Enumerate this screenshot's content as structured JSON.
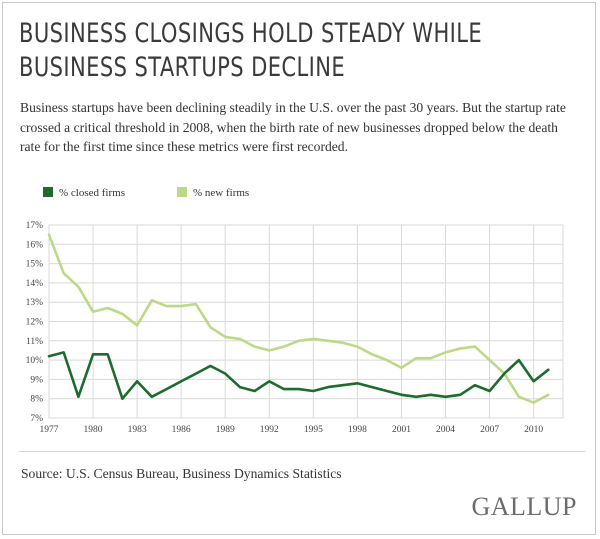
{
  "title_lines": [
    "BUSINESS CLOSINGS HOLD STEADY WHILE",
    "BUSINESS STARTUPS DECLINE"
  ],
  "subtitle": "Business startups have been declining steadily in the U.S. over the past 30 years. But the startup rate crossed a critical threshold in 2008, when the birth rate of new businesses dropped below the death rate for the first time since these metrics were first recorded.",
  "source": "Source: U.S. Census Bureau, Business Dynamics Statistics",
  "logo": "GALLUP",
  "colors": {
    "closed": "#1e6b2e",
    "new": "#bcd986",
    "grid": "#d9d9d9"
  },
  "chart_data": {
    "type": "line",
    "title": "",
    "xlabel": "",
    "ylabel": "",
    "x": [
      1977,
      1978,
      1979,
      1980,
      1981,
      1982,
      1983,
      1984,
      1985,
      1986,
      1987,
      1988,
      1989,
      1990,
      1991,
      1992,
      1993,
      1994,
      1995,
      1996,
      1997,
      1998,
      1999,
      2000,
      2001,
      2002,
      2003,
      2004,
      2005,
      2006,
      2007,
      2008,
      2009,
      2010,
      2011
    ],
    "xticks": [
      1977,
      1980,
      1983,
      1986,
      1989,
      1992,
      1995,
      1998,
      2001,
      2004,
      2007,
      2010
    ],
    "xtick_labels": [
      "1977",
      "1980",
      "1983",
      "1986",
      "1989",
      "1992",
      "1995",
      "1998",
      "2001",
      "2004",
      "2007",
      "2010"
    ],
    "xlim": [
      1977,
      2012
    ],
    "ylim": [
      7,
      17
    ],
    "yticks": [
      7,
      8,
      9,
      10,
      11,
      12,
      13,
      14,
      15,
      16,
      17
    ],
    "ytick_labels": [
      "7%",
      "8%",
      "9%",
      "10%",
      "11%",
      "12%",
      "13%",
      "14%",
      "15%",
      "16%",
      "17%"
    ],
    "grid": true,
    "legend": "top-left",
    "series": [
      {
        "name": "% closed firms",
        "values": [
          10.2,
          10.4,
          8.1,
          10.3,
          10.3,
          8.0,
          8.9,
          8.1,
          8.5,
          8.9,
          9.3,
          9.7,
          9.3,
          8.6,
          8.4,
          8.9,
          8.5,
          8.5,
          8.4,
          8.6,
          8.7,
          8.8,
          8.6,
          8.4,
          8.2,
          8.1,
          8.2,
          8.1,
          8.2,
          8.7,
          8.4,
          9.3,
          10.0,
          8.9,
          9.5
        ]
      },
      {
        "name": "% new firms",
        "values": [
          16.5,
          14.5,
          13.8,
          12.5,
          12.7,
          12.4,
          11.8,
          13.1,
          12.8,
          12.8,
          12.9,
          11.7,
          11.2,
          11.1,
          10.7,
          10.5,
          10.7,
          11.0,
          11.1,
          11.0,
          10.9,
          10.7,
          10.3,
          10.0,
          9.6,
          10.1,
          10.1,
          10.4,
          10.6,
          10.7,
          10.0,
          9.3,
          8.1,
          7.8,
          8.2
        ]
      }
    ]
  }
}
